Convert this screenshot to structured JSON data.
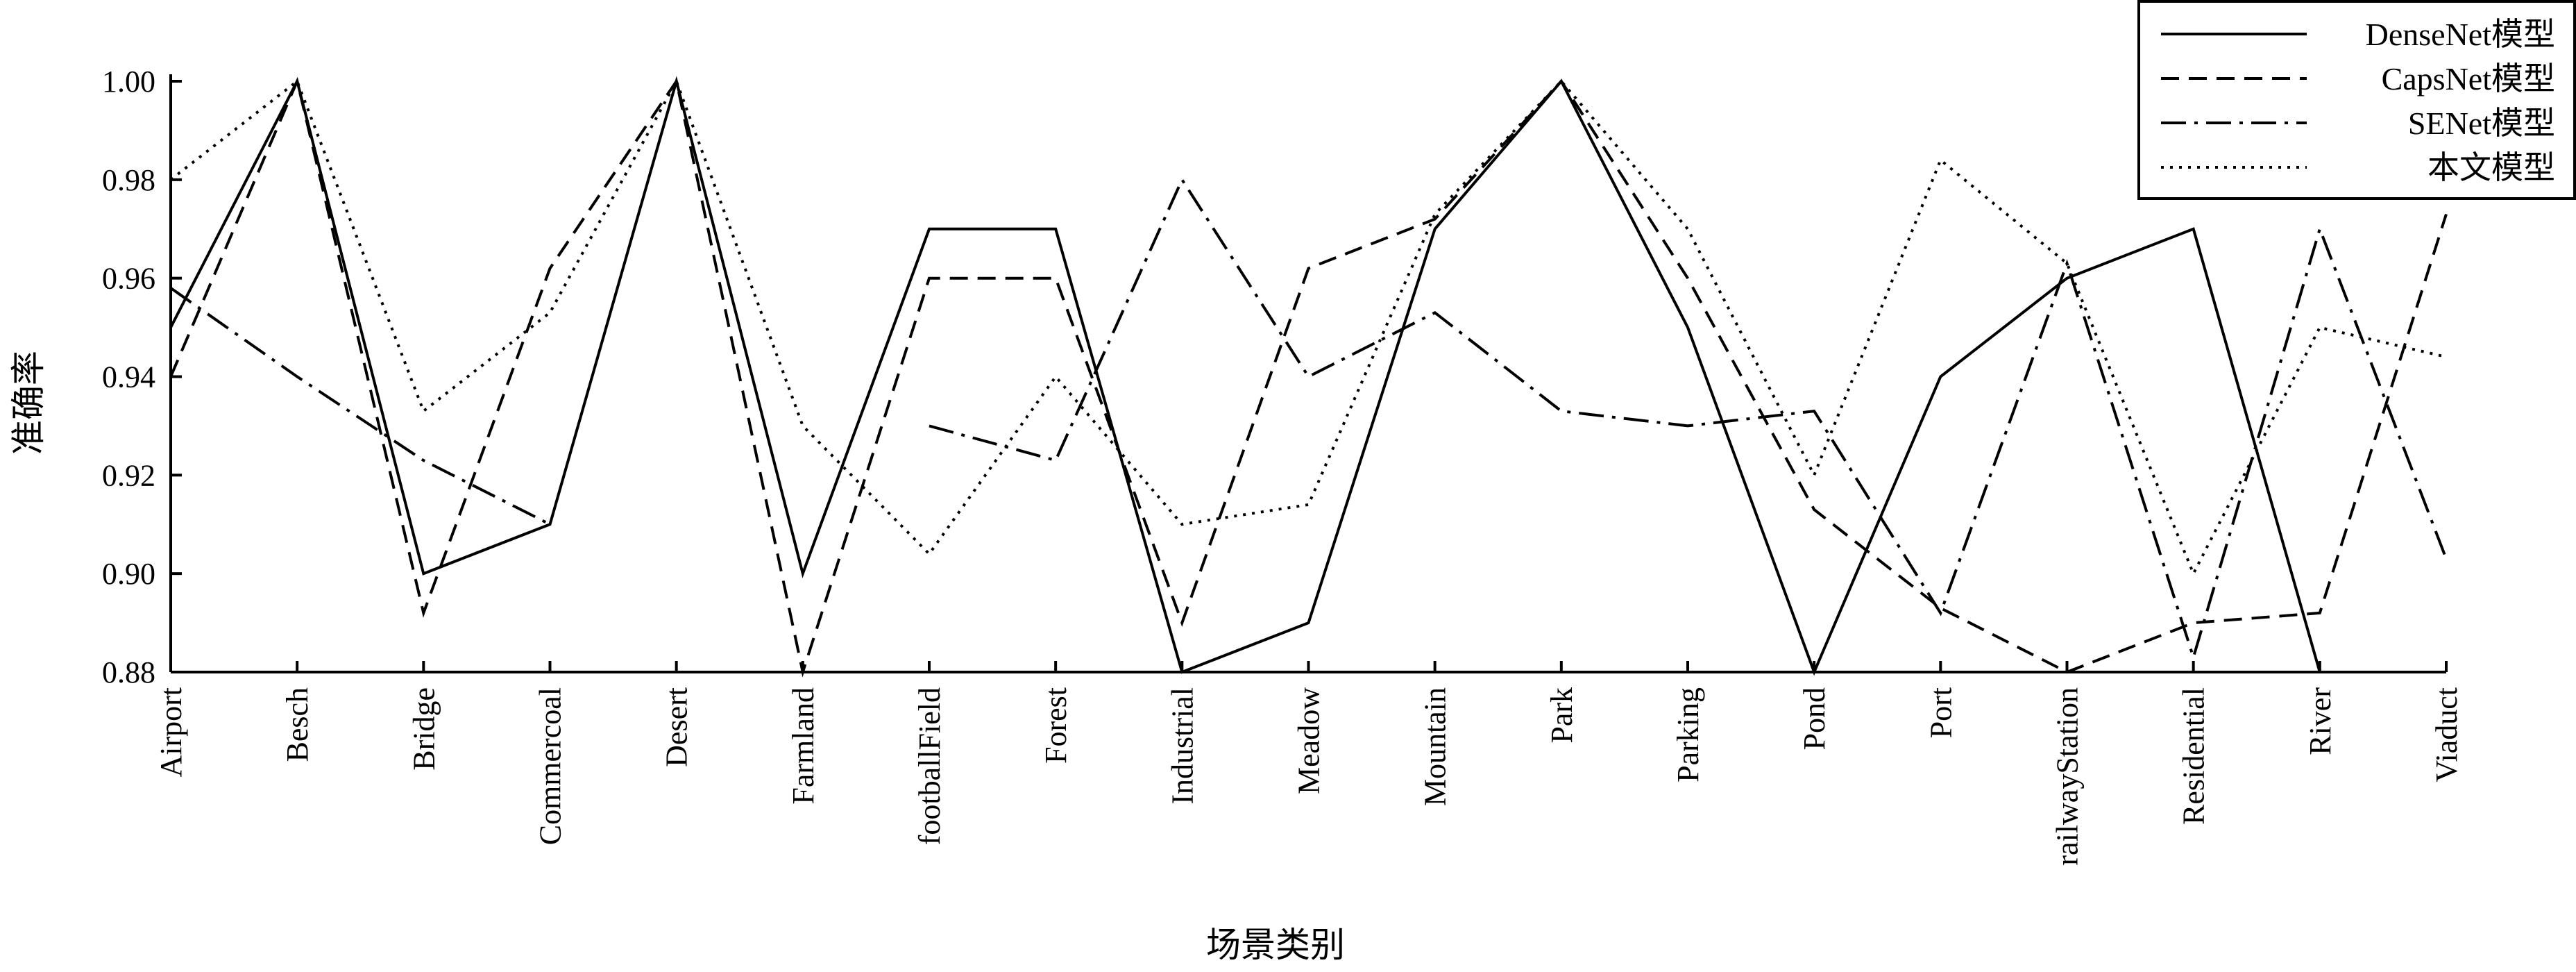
{
  "chart_data": {
    "type": "line",
    "xlabel": "场景类别",
    "ylabel": "准确率",
    "ylim": [
      0.88,
      1.0
    ],
    "yticks": [
      "0.88",
      "0.90",
      "0.92",
      "0.94",
      "0.96",
      "0.98",
      "1.00"
    ],
    "categories": [
      "Airport",
      "Besch",
      "Bridge",
      "Commercoal",
      "Desert",
      "Farmland",
      "footballField",
      "Forest",
      "Industrial",
      "Meadow",
      "Mountain",
      "Park",
      "Parking",
      "Pond",
      "Port",
      "railwayStation",
      "Residential",
      "River",
      "Viaduct"
    ],
    "legend_position": "top-right",
    "grid": false,
    "series": [
      {
        "name": "DenseNet模型",
        "style": "solid",
        "values": [
          0.95,
          1.0,
          0.9,
          0.91,
          1.0,
          0.9,
          0.97,
          0.97,
          0.88,
          0.89,
          0.97,
          1.0,
          0.95,
          0.88,
          0.94,
          0.96,
          0.97,
          0.88,
          0.88
        ]
      },
      {
        "name": "CapsNet模型",
        "style": "dashed",
        "values": [
          0.94,
          1.0,
          0.892,
          0.962,
          1.0,
          0.88,
          0.96,
          0.96,
          0.89,
          0.962,
          0.972,
          1.0,
          0.96,
          0.913,
          0.893,
          0.88,
          0.89,
          0.892,
          0.973
        ]
      },
      {
        "name": "SENet模型",
        "style": "dashdot",
        "values": [
          0.958,
          0.94,
          0.923,
          0.91,
          null,
          null,
          0.93,
          0.923,
          0.98,
          0.94,
          0.953,
          0.933,
          0.93,
          0.933,
          0.892,
          0.963,
          0.883,
          0.97,
          0.903
        ]
      },
      {
        "name": "本文模型",
        "style": "dotted",
        "values": [
          0.98,
          1.0,
          0.933,
          0.953,
          1.0,
          0.93,
          0.904,
          0.94,
          0.91,
          0.914,
          0.973,
          1.0,
          0.97,
          0.92,
          0.984,
          0.963,
          0.9,
          0.95,
          0.944
        ]
      }
    ]
  }
}
